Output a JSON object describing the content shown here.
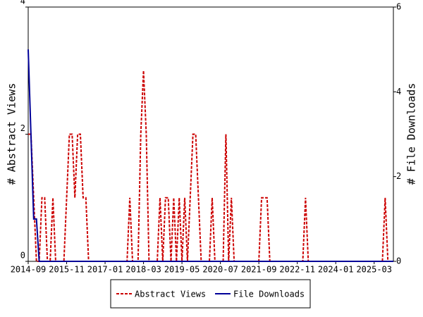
{
  "chart_data": {
    "type": "line",
    "y_label": "# Abstract Views",
    "y2_label": "# File Downloads",
    "categories": [
      "2014-09",
      null,
      null,
      null,
      null,
      null,
      null,
      null,
      null,
      null,
      null,
      null,
      null,
      null,
      "2015-11",
      null,
      null,
      null,
      null,
      null,
      null,
      null,
      null,
      null,
      null,
      null,
      null,
      null,
      "2017-01",
      null,
      null,
      null,
      null,
      null,
      null,
      null,
      null,
      null,
      null,
      null,
      null,
      null,
      "2018-03",
      null,
      null,
      null,
      null,
      null,
      null,
      null,
      null,
      null,
      null,
      null,
      null,
      null,
      "2019-05",
      null,
      null,
      null,
      null,
      null,
      null,
      null,
      null,
      null,
      null,
      null,
      null,
      null,
      "2020-07",
      null,
      null,
      null,
      null,
      null,
      null,
      null,
      null,
      null,
      null,
      null,
      null,
      null,
      "2021-09",
      null,
      null,
      null,
      null,
      null,
      null,
      null,
      null,
      null,
      null,
      null,
      null,
      null,
      "2022-11",
      null,
      null,
      null,
      null,
      null,
      null,
      null,
      null,
      null,
      null,
      null,
      null,
      null,
      "2024-01",
      null,
      null,
      null,
      null,
      null,
      null,
      null,
      null,
      null,
      null,
      null,
      null,
      null,
      "2025-03",
      null,
      null,
      null,
      null,
      null,
      null,
      null
    ],
    "series": [
      {
        "name": "Abstract Views",
        "color": "#cc0000",
        "dashed": true,
        "values": [
          2,
          2,
          1,
          0,
          0,
          1,
          1,
          0,
          0,
          1,
          0,
          0,
          0,
          0,
          1,
          2,
          2,
          1,
          2,
          2,
          1,
          1,
          0,
          0,
          0,
          0,
          0,
          0,
          0,
          0,
          0,
          0,
          0,
          0,
          0,
          0,
          0,
          1,
          0,
          0,
          0,
          2,
          3,
          2,
          0,
          0,
          0,
          0,
          1,
          0,
          1,
          1,
          0,
          1,
          0,
          1,
          0,
          1,
          0,
          1,
          2,
          2,
          1,
          0,
          0,
          0,
          0,
          1,
          0,
          0,
          0,
          0,
          2,
          0,
          1,
          0,
          0,
          0,
          0,
          0,
          0,
          0,
          0,
          0,
          0,
          1,
          1,
          1,
          0,
          0,
          0,
          0,
          0,
          0,
          0,
          0,
          0,
          0,
          0,
          0,
          0,
          1,
          0,
          0,
          0,
          0,
          0,
          0,
          0,
          0,
          0,
          0,
          0,
          0,
          0,
          0,
          0,
          0,
          0,
          0,
          0,
          0,
          0,
          0,
          0,
          0,
          0,
          0,
          0,
          0,
          1,
          0,
          0,
          0
        ]
      },
      {
        "name": "File Downloads",
        "color": "#000099",
        "dashed": false,
        "axis": "y2",
        "values": [
          5,
          3,
          1,
          1,
          0,
          0,
          0,
          0,
          0,
          0,
          0,
          0,
          0,
          0,
          0,
          0,
          0,
          0,
          0,
          0,
          0,
          0,
          0,
          0,
          0,
          0,
          0,
          0,
          0,
          0,
          0,
          0,
          0,
          0,
          0,
          0,
          0,
          0,
          0,
          0,
          0,
          0,
          0,
          0,
          0,
          0,
          0,
          0,
          0,
          0,
          0,
          0,
          0,
          0,
          0,
          0,
          0,
          0,
          0,
          0,
          0,
          0,
          0,
          0,
          0,
          0,
          0,
          0,
          0,
          0,
          0,
          0,
          0,
          0,
          0,
          0,
          0,
          0,
          0,
          0,
          0,
          0,
          0,
          0,
          0,
          0,
          0,
          0,
          0,
          0,
          0,
          0,
          0,
          0,
          0,
          0,
          0,
          0,
          0,
          0,
          0,
          0,
          0,
          0,
          0,
          0,
          0,
          0,
          0,
          0,
          0,
          0,
          0,
          0,
          0,
          0,
          0,
          0,
          0,
          0,
          0,
          0,
          0,
          0,
          0,
          0,
          0,
          0,
          0,
          0,
          0,
          0,
          0,
          0
        ]
      }
    ],
    "ylim": [
      0,
      4
    ],
    "yticks": [
      0,
      2,
      4
    ],
    "y2lim": [
      0,
      6
    ],
    "y2ticks": [
      0,
      2,
      4,
      6
    ]
  }
}
